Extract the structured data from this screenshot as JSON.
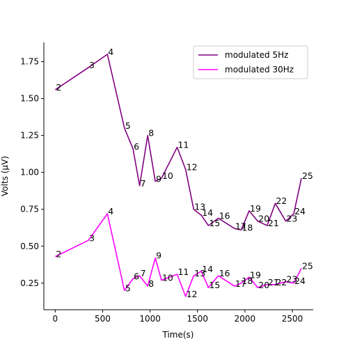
{
  "chart_data": {
    "type": "line",
    "xlabel": "Time(s)",
    "ylabel": "Volts (μV)",
    "xlim": [
      -120,
      2720
    ],
    "ylim": [
      0.07,
      1.88
    ],
    "x_ticks": [
      0,
      500,
      1000,
      1500,
      2000,
      2500
    ],
    "x_tick_labels": [
      "0",
      "500",
      "1000",
      "1500",
      "2000",
      "2500"
    ],
    "y_ticks": [
      0.25,
      0.5,
      0.75,
      1.0,
      1.25,
      1.5,
      1.75
    ],
    "y_tick_labels": [
      "0.25",
      "0.50",
      "0.75",
      "1.00",
      "1.25",
      "1.50",
      "1.75"
    ],
    "grid": false,
    "legend_position": "upper right",
    "series": [
      {
        "name": "modulated 5Hz",
        "color": "#800080",
        "points": [
          {
            "label": "2",
            "x": 0,
            "y": 1.56
          },
          {
            "label": "3",
            "x": 350,
            "y": 1.71
          },
          {
            "label": "4",
            "x": 550,
            "y": 1.8
          },
          {
            "label": "5",
            "x": 730,
            "y": 1.3
          },
          {
            "label": "6",
            "x": 820,
            "y": 1.16
          },
          {
            "label": "7",
            "x": 890,
            "y": 0.91
          },
          {
            "label": "8",
            "x": 975,
            "y": 1.25
          },
          {
            "label": "9",
            "x": 1055,
            "y": 0.94
          },
          {
            "label": "10",
            "x": 1120,
            "y": 0.96
          },
          {
            "label": "11",
            "x": 1285,
            "y": 1.17
          },
          {
            "label": "12",
            "x": 1375,
            "y": 1.02
          },
          {
            "label": "13",
            "x": 1460,
            "y": 0.75
          },
          {
            "label": "14",
            "x": 1540,
            "y": 0.71
          },
          {
            "label": "15",
            "x": 1615,
            "y": 0.64
          },
          {
            "label": "16",
            "x": 1720,
            "y": 0.69
          },
          {
            "label": "17",
            "x": 1890,
            "y": 0.62
          },
          {
            "label": "18",
            "x": 1960,
            "y": 0.61
          },
          {
            "label": "19",
            "x": 2045,
            "y": 0.74
          },
          {
            "label": "20",
            "x": 2135,
            "y": 0.67
          },
          {
            "label": "21",
            "x": 2235,
            "y": 0.64
          },
          {
            "label": "22",
            "x": 2320,
            "y": 0.79
          },
          {
            "label": "23",
            "x": 2430,
            "y": 0.67
          },
          {
            "label": "24",
            "x": 2515,
            "y": 0.72
          },
          {
            "label": "25",
            "x": 2595,
            "y": 0.96
          }
        ]
      },
      {
        "name": "modulated 30Hz",
        "color": "#ff00ff",
        "points": [
          {
            "label": "2",
            "x": 0,
            "y": 0.43
          },
          {
            "label": "3",
            "x": 350,
            "y": 0.54
          },
          {
            "label": "4",
            "x": 550,
            "y": 0.72
          },
          {
            "label": "5",
            "x": 730,
            "y": 0.2
          },
          {
            "label": "6",
            "x": 820,
            "y": 0.28
          },
          {
            "label": "7",
            "x": 890,
            "y": 0.3
          },
          {
            "label": "8",
            "x": 975,
            "y": 0.23
          },
          {
            "label": "9",
            "x": 1055,
            "y": 0.42
          },
          {
            "label": "10",
            "x": 1120,
            "y": 0.27
          },
          {
            "label": "11",
            "x": 1285,
            "y": 0.31
          },
          {
            "label": "12",
            "x": 1375,
            "y": 0.16
          },
          {
            "label": "13",
            "x": 1460,
            "y": 0.3
          },
          {
            "label": "14",
            "x": 1540,
            "y": 0.33
          },
          {
            "label": "15",
            "x": 1615,
            "y": 0.22
          },
          {
            "label": "16",
            "x": 1720,
            "y": 0.3
          },
          {
            "label": "17",
            "x": 1890,
            "y": 0.23
          },
          {
            "label": "18",
            "x": 1960,
            "y": 0.25
          },
          {
            "label": "19",
            "x": 2045,
            "y": 0.29
          },
          {
            "label": "20",
            "x": 2135,
            "y": 0.22
          },
          {
            "label": "21",
            "x": 2235,
            "y": 0.24
          },
          {
            "label": "22",
            "x": 2320,
            "y": 0.24
          },
          {
            "label": "23",
            "x": 2430,
            "y": 0.26
          },
          {
            "label": "24",
            "x": 2515,
            "y": 0.25
          },
          {
            "label": "25",
            "x": 2595,
            "y": 0.35
          }
        ]
      }
    ]
  }
}
